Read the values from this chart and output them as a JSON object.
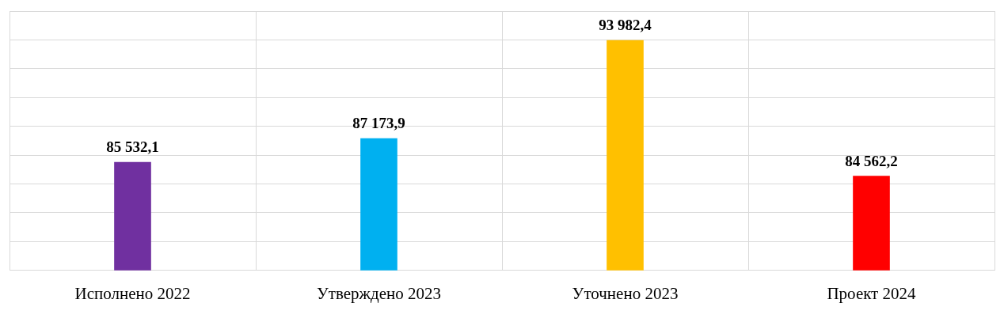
{
  "chart_data": {
    "type": "bar",
    "categories": [
      "Исполнено 2022",
      "Утверждено 2023",
      "Уточнено 2023",
      "Проект 2024"
    ],
    "values": [
      85532.1,
      87173.9,
      93982.4,
      84562.2
    ],
    "colors": [
      "#7030a0",
      "#00b0f0",
      "#ffc000",
      "#ff0000"
    ],
    "value_labels": [
      "85 532,1",
      "87 173,9",
      "93 982,4",
      "84 562,2"
    ],
    "ylim": [
      78000,
      96000
    ],
    "yticks": [
      {
        "value": 78000,
        "label": null
      },
      {
        "value": 80000,
        "label": null
      },
      {
        "value": 82000,
        "label": null
      },
      {
        "value": 84000,
        "label": null
      },
      {
        "value": 86000,
        "label": null
      },
      {
        "value": 88000,
        "label": null
      },
      {
        "value": 90000,
        "label": null
      },
      {
        "value": 92000,
        "label": null
      },
      {
        "value": 94000,
        "label": null
      },
      {
        "value": 96000,
        "label": null
      }
    ],
    "tick_labels": "x",
    "grid": true,
    "legend": false
  }
}
